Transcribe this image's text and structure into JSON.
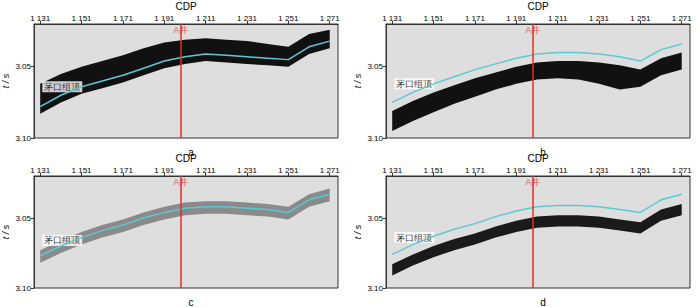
{
  "chart_data": [
    {
      "type": "line",
      "title": "a",
      "x_label": "CDP",
      "y_label": "t / s",
      "xlim": [
        1128,
        1275
      ],
      "ylim": [
        3.02,
        3.1
      ],
      "xticks": [
        {
          "value": 1131,
          "label": "1 131"
        },
        {
          "value": 1151,
          "label": "1 151"
        },
        {
          "value": 1171,
          "label": "1 171"
        },
        {
          "value": 1191,
          "label": "1 191"
        },
        {
          "value": 1211,
          "label": "1 211"
        },
        {
          "value": 1231,
          "label": "1 231"
        },
        {
          "value": 1251,
          "label": "1 251"
        },
        {
          "value": 1271,
          "label": "1 271"
        }
      ],
      "yticks": [
        3.05,
        {
          "value": 3.1,
          "label": "3.10"
        }
      ],
      "x": [
        1131,
        1141,
        1151,
        1161,
        1171,
        1181,
        1191,
        1201,
        1211,
        1221,
        1231,
        1241,
        1251,
        1261,
        1271
      ],
      "series": [
        {
          "color": "#5bc8d8",
          "values": [
            3.078,
            3.07,
            3.064,
            3.06,
            3.056,
            3.051,
            3.046,
            3.043,
            3.041,
            3.042,
            3.043,
            3.044,
            3.045,
            3.036,
            3.032
          ]
        }
      ],
      "event": {
        "color": "#111111",
        "top": [
          3.062,
          3.055,
          3.05,
          3.046,
          3.042,
          3.037,
          3.033,
          3.031,
          3.03,
          3.031,
          3.032,
          3.034,
          3.036,
          3.027,
          3.024
        ],
        "bottom": [
          3.083,
          3.075,
          3.069,
          3.065,
          3.061,
          3.056,
          3.051,
          3.048,
          3.046,
          3.047,
          3.048,
          3.049,
          3.05,
          3.041,
          3.037
        ]
      },
      "well": {
        "text": "A井",
        "x": 1199,
        "color": "#e0301e"
      },
      "annotations": [
        {
          "text": "茅口组顶",
          "x": 1132,
          "y": 3.064
        }
      ]
    },
    {
      "type": "line",
      "title": "b",
      "x_label": "CDP",
      "y_label": "t / s",
      "xlim": [
        1128,
        1275
      ],
      "ylim": [
        3.02,
        3.1
      ],
      "xticks": [
        {
          "value": 1131,
          "label": "1 131"
        },
        {
          "value": 1151,
          "label": "1 151"
        },
        {
          "value": 1171,
          "label": "1 171"
        },
        {
          "value": 1191,
          "label": "1 191"
        },
        {
          "value": 1211,
          "label": "1 211"
        },
        {
          "value": 1231,
          "label": "1 231"
        },
        {
          "value": 1251,
          "label": "1 251"
        },
        {
          "value": 1271,
          "label": "1 271"
        }
      ],
      "yticks": [
        3.05,
        {
          "value": 3.1,
          "label": "3.10"
        }
      ],
      "x": [
        1131,
        1141,
        1151,
        1161,
        1171,
        1181,
        1191,
        1201,
        1211,
        1221,
        1231,
        1241,
        1251,
        1261,
        1271
      ],
      "series": [
        {
          "color": "#5bc8d8",
          "values": [
            3.075,
            3.068,
            3.062,
            3.057,
            3.052,
            3.048,
            3.044,
            3.041,
            3.04,
            3.04,
            3.041,
            3.043,
            3.046,
            3.038,
            3.034
          ]
        }
      ],
      "event": {
        "color": "#111111",
        "top": [
          3.081,
          3.074,
          3.068,
          3.063,
          3.058,
          3.054,
          3.05,
          3.047,
          3.046,
          3.046,
          3.047,
          3.049,
          3.052,
          3.044,
          3.04
        ],
        "bottom": [
          3.095,
          3.088,
          3.082,
          3.076,
          3.071,
          3.066,
          3.062,
          3.059,
          3.058,
          3.059,
          3.062,
          3.066,
          3.064,
          3.056,
          3.052
        ]
      },
      "well": {
        "text": "A井",
        "x": 1199,
        "color": "#e0301e"
      },
      "annotations": [
        {
          "text": "茅口组顶",
          "x": 1132,
          "y": 3.062
        }
      ]
    },
    {
      "type": "line",
      "title": "c",
      "x_label": "CDP",
      "y_label": "t / s",
      "xlim": [
        1128,
        1275
      ],
      "ylim": [
        3.02,
        3.1
      ],
      "xticks": [
        {
          "value": 1131,
          "label": "1 131"
        },
        {
          "value": 1151,
          "label": "1 151"
        },
        {
          "value": 1171,
          "label": "1 171"
        },
        {
          "value": 1191,
          "label": "1 191"
        },
        {
          "value": 1211,
          "label": "1 211"
        },
        {
          "value": 1231,
          "label": "1 231"
        },
        {
          "value": 1251,
          "label": "1 251"
        },
        {
          "value": 1271,
          "label": "1 271"
        }
      ],
      "yticks": [
        3.05,
        {
          "value": 3.1,
          "label": "3.10"
        }
      ],
      "x": [
        1131,
        1141,
        1151,
        1161,
        1171,
        1181,
        1191,
        1201,
        1211,
        1221,
        1231,
        1241,
        1251,
        1261,
        1271
      ],
      "series": [
        {
          "color": "#5bc8d8",
          "values": [
            3.077,
            3.07,
            3.064,
            3.059,
            3.055,
            3.05,
            3.046,
            3.043,
            3.042,
            3.042,
            3.043,
            3.044,
            3.046,
            3.037,
            3.033
          ]
        }
      ],
      "event": {
        "color": "#8a8a8a",
        "top": [
          3.073,
          3.066,
          3.06,
          3.055,
          3.051,
          3.046,
          3.042,
          3.039,
          3.038,
          3.038,
          3.039,
          3.04,
          3.042,
          3.033,
          3.029
        ],
        "bottom": [
          3.082,
          3.075,
          3.069,
          3.064,
          3.06,
          3.055,
          3.051,
          3.048,
          3.047,
          3.047,
          3.048,
          3.049,
          3.051,
          3.042,
          3.038
        ]
      },
      "well": {
        "text": "A井",
        "x": 1199,
        "color": "#e0301e"
      },
      "annotations": [
        {
          "text": "茅口组顶",
          "x": 1132,
          "y": 3.066
        }
      ]
    },
    {
      "type": "line",
      "title": "d",
      "x_label": "CDP",
      "y_label": "t / s",
      "xlim": [
        1128,
        1275
      ],
      "ylim": [
        3.02,
        3.1
      ],
      "xticks": [
        {
          "value": 1131,
          "label": "1 131"
        },
        {
          "value": 1151,
          "label": "1 151"
        },
        {
          "value": 1171,
          "label": "1 171"
        },
        {
          "value": 1191,
          "label": "1 191"
        },
        {
          "value": 1211,
          "label": "1 211"
        },
        {
          "value": 1231,
          "label": "1 231"
        },
        {
          "value": 1251,
          "label": "1 251"
        },
        {
          "value": 1271,
          "label": "1 271"
        }
      ],
      "yticks": [
        3.05,
        {
          "value": 3.1,
          "label": "3.10"
        }
      ],
      "x": [
        1131,
        1141,
        1151,
        1161,
        1171,
        1181,
        1191,
        1201,
        1211,
        1221,
        1231,
        1241,
        1251,
        1261,
        1271
      ],
      "series": [
        {
          "color": "#5bc8d8",
          "values": [
            3.076,
            3.069,
            3.063,
            3.058,
            3.054,
            3.049,
            3.045,
            3.042,
            3.041,
            3.041,
            3.042,
            3.044,
            3.046,
            3.037,
            3.033
          ]
        }
      ],
      "event": {
        "color": "#1a1a1a",
        "top": [
          3.083,
          3.076,
          3.07,
          3.065,
          3.061,
          3.056,
          3.052,
          3.049,
          3.048,
          3.048,
          3.049,
          3.051,
          3.053,
          3.044,
          3.04
        ],
        "bottom": [
          3.091,
          3.084,
          3.078,
          3.073,
          3.069,
          3.064,
          3.06,
          3.057,
          3.056,
          3.056,
          3.057,
          3.059,
          3.061,
          3.052,
          3.048
        ]
      },
      "well": {
        "text": "A井",
        "x": 1199,
        "color": "#e0301e"
      },
      "annotations": [
        {
          "text": "茅口组顶",
          "x": 1132,
          "y": 3.064
        }
      ]
    }
  ]
}
